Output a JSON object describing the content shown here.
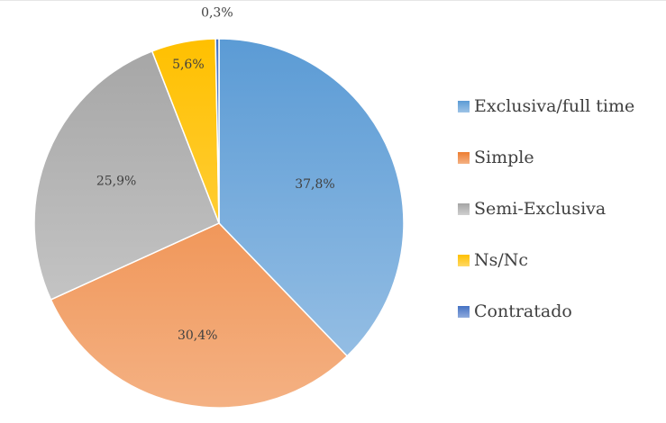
{
  "chart_data": {
    "type": "pie",
    "title": "",
    "categories": [
      "Exclusiva/full time",
      "Simple",
      "Semi-Exclusiva",
      "Ns/Nc",
      "Contratado"
    ],
    "values": [
      37.8,
      30.4,
      25.9,
      5.6,
      0.3
    ],
    "labels": [
      "37,8%",
      "30,4%",
      "25,9%",
      "5,6%",
      "0,3%"
    ],
    "start": "12 o'clock",
    "direction": "clockwise",
    "legend_position": "right",
    "colors": [
      {
        "top": "#5b9bd5",
        "bottom": "#9dc3e6"
      },
      {
        "top": "#ed7d31",
        "bottom": "#f4b183"
      },
      {
        "top": "#a5a5a5",
        "bottom": "#d0d0d0"
      },
      {
        "top": "#ffc000",
        "bottom": "#ffd966"
      },
      {
        "top": "#4472c4",
        "bottom": "#8faadc"
      }
    ]
  }
}
